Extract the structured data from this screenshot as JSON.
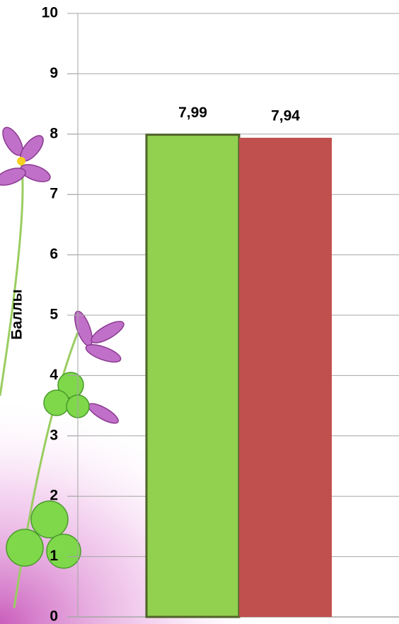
{
  "chart_data": {
    "type": "bar",
    "y_label": "Баллы",
    "categories": [
      null,
      null
    ],
    "values": [
      7.99,
      7.94
    ],
    "value_labels": [
      "7,99",
      "7,94"
    ],
    "colors": [
      "#92d050",
      "#c0504d"
    ],
    "ylim": [
      0,
      10
    ],
    "yticks": [
      0,
      1,
      2,
      3,
      4,
      5,
      6,
      7,
      8,
      9,
      10
    ],
    "grid": true
  }
}
